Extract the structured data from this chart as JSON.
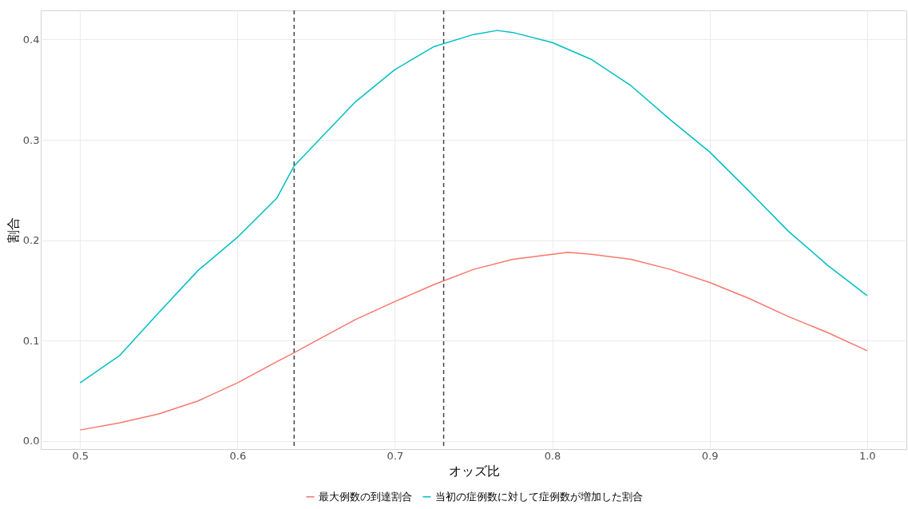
{
  "chart_data": {
    "type": "line",
    "xlabel": "オッズ比",
    "ylabel": "割合",
    "xlim": [
      0.475,
      1.025
    ],
    "xticks": [
      0.5,
      0.6,
      0.7,
      0.8,
      0.9,
      {
        "value": 1.0,
        "label": "1.0"
      }
    ],
    "ylim": [
      -0.008,
      0.429
    ],
    "yticks": [
      {
        "value": 0,
        "label": "0.0"
      },
      0.1,
      0.2,
      0.3,
      0.4
    ],
    "grid": true,
    "legend": "bottom",
    "line_style": "solid",
    "marker": "none",
    "series": [
      {
        "name": "最大例数の到達割合",
        "color": "#f8766d",
        "x": [
          0.5,
          0.525,
          0.55,
          0.575,
          0.6,
          0.625,
          0.636,
          0.65,
          0.675,
          0.7,
          0.725,
          0.75,
          0.775,
          0.8,
          0.81,
          0.825,
          0.85,
          0.875,
          0.9,
          0.925,
          0.95,
          0.975,
          1.0
        ],
        "values": [
          0.011,
          0.018,
          0.027,
          0.04,
          0.058,
          0.079,
          0.088,
          0.1,
          0.121,
          0.139,
          0.156,
          0.171,
          0.181,
          0.186,
          0.188,
          0.186,
          0.181,
          0.171,
          0.158,
          0.142,
          0.124,
          0.108,
          0.09
        ]
      },
      {
        "name": "当初の症例数に対して症例数が増加した割合",
        "color": "#00bfc4",
        "x": [
          0.5,
          0.525,
          0.55,
          0.575,
          0.6,
          0.625,
          0.636,
          0.65,
          0.675,
          0.7,
          0.725,
          0.75,
          0.765,
          0.775,
          0.8,
          0.825,
          0.85,
          0.875,
          0.9,
          0.925,
          0.95,
          0.975,
          1.0
        ],
        "values": [
          0.058,
          0.085,
          0.128,
          0.17,
          0.203,
          0.242,
          0.274,
          0.297,
          0.338,
          0.37,
          0.393,
          0.405,
          0.409,
          0.407,
          0.397,
          0.38,
          0.354,
          0.32,
          0.288,
          0.249,
          0.209,
          0.175,
          0.145
        ]
      }
    ],
    "ref_lines": [
      {
        "axis": "x",
        "value": 0.636,
        "color": "#444444",
        "line_style": "dashed"
      },
      {
        "axis": "x",
        "value": 0.731,
        "color": "#444444",
        "line_style": "dashed"
      }
    ]
  }
}
